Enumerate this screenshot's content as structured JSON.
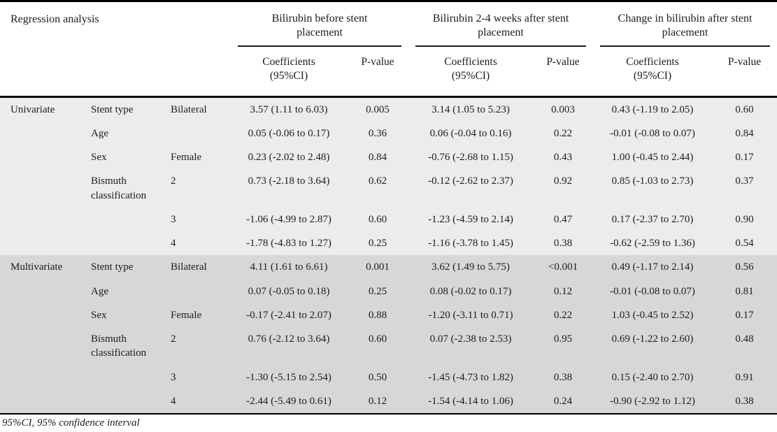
{
  "table": {
    "corner_label": "Regression analysis",
    "groups": [
      {
        "title": "Bilirubin before stent placement",
        "coef_header": "Coefficients",
        "coef_header_sub": "(95%CI)",
        "pval_header": "P-value"
      },
      {
        "title": "Bilirubin 2-4 weeks after stent placement",
        "coef_header": "Coefficients",
        "coef_header_sub": "(95%CI)",
        "pval_header": "P-value"
      },
      {
        "title": "Change in bilirubin after stent placement",
        "coef_header": "Coefficients",
        "coef_header_sub": "(95%CI)",
        "pval_header": "P-value"
      }
    ],
    "sections": [
      {
        "name": "Univariate",
        "rows": [
          {
            "variable": "Stent type",
            "level": "Bilateral",
            "g1_coef": "3.57 (1.11 to 6.03)",
            "g1_p": "0.005",
            "g2_coef": "3.14 (1.05 to 5.23)",
            "g2_p": "0.003",
            "g3_coef": "0.43 (-1.19 to 2.05)",
            "g3_p": "0.60"
          },
          {
            "variable": "Age",
            "level": "",
            "g1_coef": "0.05 (-0.06 to 0.17)",
            "g1_p": "0.36",
            "g2_coef": "0.06 (-0.04 to 0.16)",
            "g2_p": "0.22",
            "g3_coef": "-0.01 (-0.08 to 0.07)",
            "g3_p": "0.84"
          },
          {
            "variable": "Sex",
            "level": "Female",
            "g1_coef": "0.23 (-2.02 to 2.48)",
            "g1_p": "0.84",
            "g2_coef": "-0.76 (-2.68 to 1.15)",
            "g2_p": "0.43",
            "g3_coef": "1.00 (-0.45 to 2.44)",
            "g3_p": "0.17"
          },
          {
            "variable": "Bismuth classification",
            "level": "2",
            "g1_coef": "0.73 (-2.18 to 3.64)",
            "g1_p": "0.62",
            "g2_coef": "-0.12 (-2.62 to 2.37)",
            "g2_p": "0.92",
            "g3_coef": "0.85 (-1.03 to 2.73)",
            "g3_p": "0.37"
          },
          {
            "variable": "",
            "level": "3",
            "g1_coef": "-1.06 (-4.99 to 2.87)",
            "g1_p": "0.60",
            "g2_coef": "-1.23 (-4.59 to 2.14)",
            "g2_p": "0.47",
            "g3_coef": "0.17 (-2.37 to 2.70)",
            "g3_p": "0.90"
          },
          {
            "variable": "",
            "level": "4",
            "g1_coef": "-1.78 (-4.83 to 1.27)",
            "g1_p": "0.25",
            "g2_coef": "-1.16 (-3.78 to 1.45)",
            "g2_p": "0.38",
            "g3_coef": "-0.62 (-2.59 to 1.36)",
            "g3_p": "0.54"
          }
        ]
      },
      {
        "name": "Multivariate",
        "rows": [
          {
            "variable": "Stent type",
            "level": "Bilateral",
            "g1_coef": "4.11 (1.61 to 6.61)",
            "g1_p": "0.001",
            "g2_coef": "3.62 (1.49 to 5.75)",
            "g2_p": "<0.001",
            "g3_coef": "0.49 (-1.17 to 2.14)",
            "g3_p": "0.56"
          },
          {
            "variable": "Age",
            "level": "",
            "g1_coef": "0.07 (-0.05 to 0.18)",
            "g1_p": "0.25",
            "g2_coef": "0.08 (-0.02 to 0.17)",
            "g2_p": "0.12",
            "g3_coef": "-0.01 (-0.08 to 0.07)",
            "g3_p": "0.81"
          },
          {
            "variable": "Sex",
            "level": "Female",
            "g1_coef": "-0.17 (-2.41 to 2.07)",
            "g1_p": "0.88",
            "g2_coef": "-1.20 (-3.11 to 0.71)",
            "g2_p": "0.22",
            "g3_coef": "1.03 (-0.45 to 2.52)",
            "g3_p": "0.17"
          },
          {
            "variable": "Bismuth classification",
            "level": "2",
            "g1_coef": "0.76 (-2.12 to 3.64)",
            "g1_p": "0.60",
            "g2_coef": "0.07 (-2.38 to 2.53)",
            "g2_p": "0.95",
            "g3_coef": "0.69 (-1.22 to 2.60)",
            "g3_p": "0.48"
          },
          {
            "variable": "",
            "level": "3",
            "g1_coef": "-1.30 (-5.15 to 2.54)",
            "g1_p": "0.50",
            "g2_coef": "-1.45 (-4.73 to 1.82)",
            "g2_p": "0.38",
            "g3_coef": "0.15 (-2.40 to 2.70)",
            "g3_p": "0.91"
          },
          {
            "variable": "",
            "level": "4",
            "g1_coef": "-2.44 (-5.49 to 0.61)",
            "g1_p": "0.12",
            "g2_coef": "-1.54 (-4.14 to 1.06)",
            "g2_p": "0.24",
            "g3_coef": "-0.90 (-2.92 to 1.12)",
            "g3_p": "0.38"
          }
        ]
      }
    ],
    "footnote": "95%CI, 95% confidence interval"
  },
  "colors": {
    "univariate_band": "#ececec",
    "multivariate_band": "#d7d7d7",
    "rule": "#000000",
    "text": "#1c1c1c"
  }
}
